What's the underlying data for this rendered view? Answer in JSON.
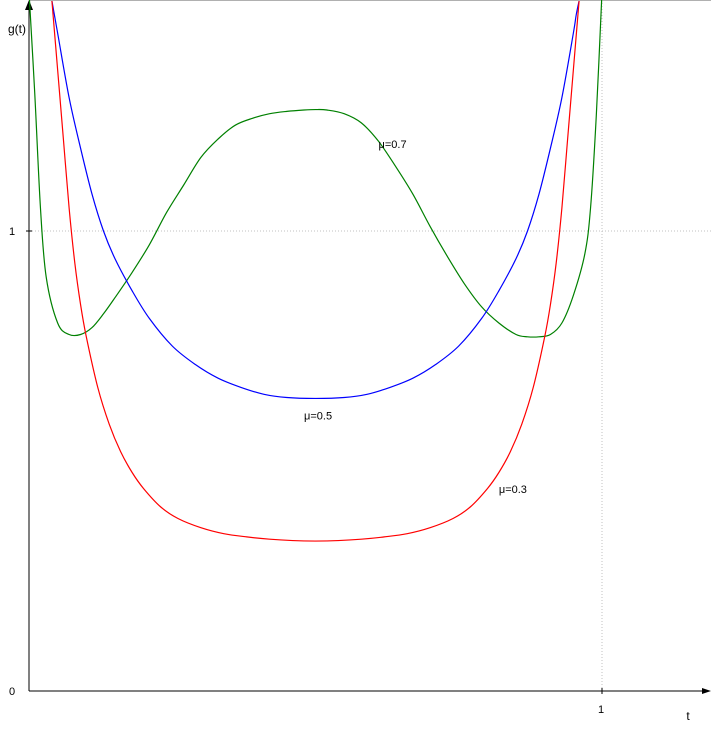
{
  "chart_data": {
    "type": "line",
    "title": "",
    "xlabel": "t",
    "ylabel": "g(t)",
    "xlim": [
      -0.05,
      1.2
    ],
    "ylim": [
      0,
      1.5
    ],
    "x_ticks": [
      "0",
      "1"
    ],
    "y_ticks": [
      "0",
      "1"
    ],
    "reference_lines": {
      "x": 1,
      "y": 1
    },
    "series": [
      {
        "name": "μ=0.7",
        "color": "#008000",
        "x": [
          0.0,
          0.01,
          0.02,
          0.03,
          0.05,
          0.07,
          0.09,
          0.11,
          0.13,
          0.15,
          0.18,
          0.21,
          0.24,
          0.27,
          0.3,
          0.33,
          0.36,
          0.39,
          0.42,
          0.45,
          0.48,
          0.5,
          0.52,
          0.55,
          0.58,
          0.61,
          0.64,
          0.67,
          0.7,
          0.73,
          0.76,
          0.79,
          0.82,
          0.85,
          0.87,
          0.89,
          0.91,
          0.93,
          0.95,
          0.97,
          0.98,
          0.99,
          1.0
        ],
        "values": [
          1.52,
          1.3,
          1.05,
          0.9,
          0.8,
          0.775,
          0.775,
          0.79,
          0.82,
          0.855,
          0.91,
          0.97,
          1.04,
          1.1,
          1.16,
          1.2,
          1.23,
          1.245,
          1.255,
          1.26,
          1.263,
          1.264,
          1.263,
          1.255,
          1.235,
          1.195,
          1.14,
          1.08,
          1.01,
          0.945,
          0.885,
          0.835,
          0.8,
          0.775,
          0.77,
          0.77,
          0.775,
          0.8,
          0.86,
          0.95,
          1.05,
          1.25,
          1.52
        ]
      },
      {
        "name": "μ=0.5",
        "color": "#0000ff",
        "x": [
          0.04,
          0.05,
          0.07,
          0.09,
          0.11,
          0.13,
          0.15,
          0.18,
          0.21,
          0.25,
          0.29,
          0.33,
          0.37,
          0.41,
          0.45,
          0.5,
          0.55,
          0.59,
          0.63,
          0.67,
          0.71,
          0.75,
          0.79,
          0.82,
          0.85,
          0.87,
          0.89,
          0.91,
          0.93,
          0.95,
          0.955,
          0.96
        ],
        "values": [
          1.5,
          1.43,
          1.29,
          1.18,
          1.08,
          1.0,
          0.94,
          0.87,
          0.81,
          0.75,
          0.71,
          0.68,
          0.66,
          0.645,
          0.638,
          0.636,
          0.638,
          0.645,
          0.66,
          0.68,
          0.71,
          0.75,
          0.81,
          0.87,
          0.94,
          1.0,
          1.08,
          1.18,
          1.29,
          1.43,
          1.47,
          1.5
        ]
      },
      {
        "name": "μ=0.3",
        "color": "#ff0000",
        "x": [
          0.04,
          0.05,
          0.06,
          0.07,
          0.08,
          0.09,
          0.1,
          0.12,
          0.14,
          0.16,
          0.18,
          0.2,
          0.23,
          0.26,
          0.3,
          0.34,
          0.38,
          0.42,
          0.46,
          0.5,
          0.54,
          0.58,
          0.62,
          0.66,
          0.7,
          0.74,
          0.77,
          0.8,
          0.82,
          0.84,
          0.86,
          0.88,
          0.9,
          0.91,
          0.92,
          0.93,
          0.94,
          0.95,
          0.96
        ],
        "values": [
          1.5,
          1.35,
          1.2,
          1.05,
          0.93,
          0.84,
          0.77,
          0.66,
          0.58,
          0.52,
          0.475,
          0.44,
          0.4,
          0.375,
          0.355,
          0.342,
          0.335,
          0.33,
          0.327,
          0.326,
          0.327,
          0.33,
          0.335,
          0.342,
          0.355,
          0.375,
          0.4,
          0.44,
          0.475,
          0.52,
          0.58,
          0.66,
          0.77,
          0.84,
          0.93,
          1.05,
          1.2,
          1.35,
          1.5
        ]
      }
    ],
    "annotations": [
      {
        "text": "μ=0.7",
        "series": 0,
        "x": 0.61,
        "y": 1.18
      },
      {
        "text": "μ=0.5",
        "series": 1,
        "x": 0.48,
        "y": 0.59
      },
      {
        "text": "μ=0.3",
        "series": 2,
        "x": 0.82,
        "y": 0.43
      }
    ],
    "grid": false,
    "legend": "none"
  }
}
